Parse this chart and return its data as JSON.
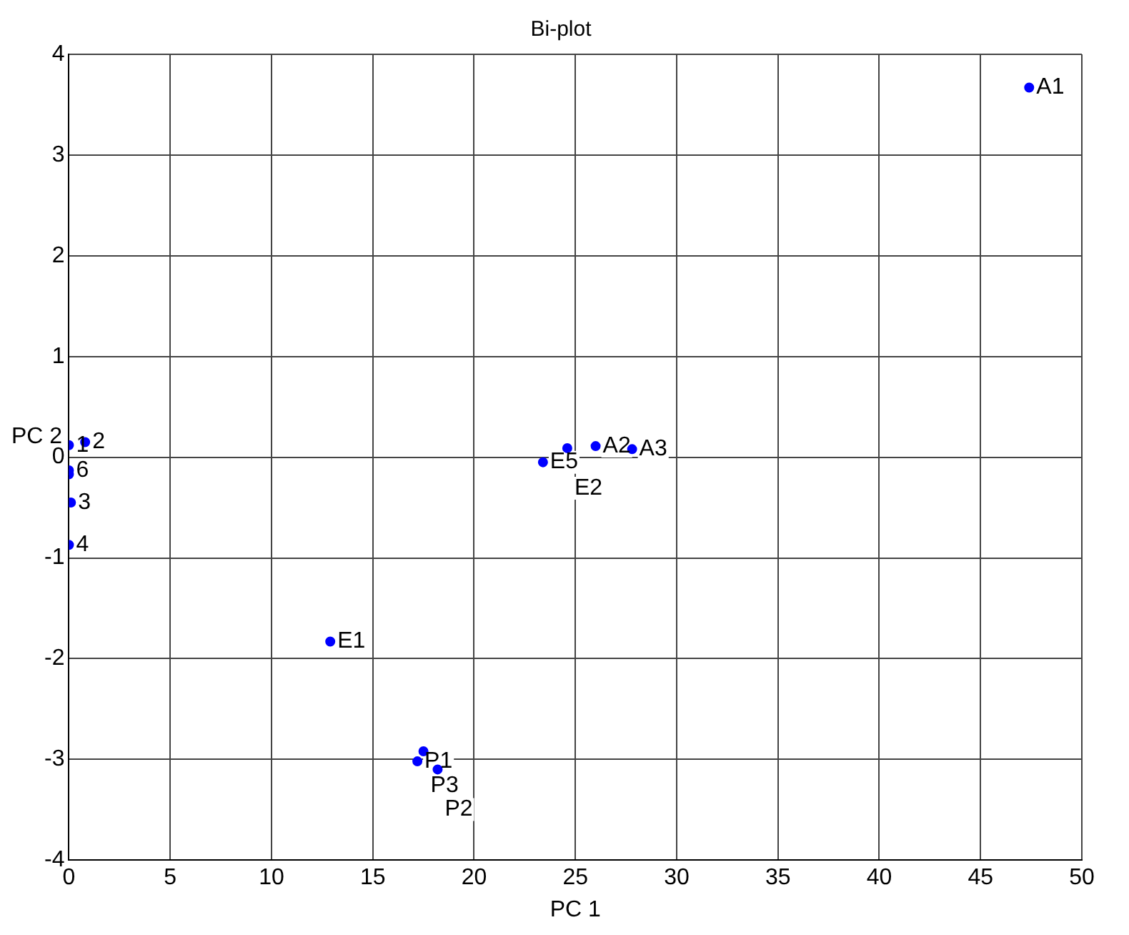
{
  "chart_data": {
    "type": "scatter",
    "title": "Bi-plot",
    "xlabel": "PC 1",
    "ylabel": "PC 2",
    "x": [
      47.4,
      12.9,
      17.2,
      17.5,
      18.2,
      23.4,
      24.6,
      26.0,
      27.8,
      0,
      0.8,
      0.1,
      0,
      0,
      0
    ],
    "series": [
      {
        "color": "#0000ff",
        "values": [
          3.67,
          -1.83,
          -3.02,
          -2.92,
          -3.1,
          -0.05,
          0.09,
          0.11,
          0.08,
          0.12,
          0.15,
          -0.45,
          -0.87,
          -0.17,
          -0.13
        ]
      }
    ],
    "annotations": [
      {
        "text": "A1",
        "x": 47.4,
        "y": 3.67
      },
      {
        "text": "E1",
        "x": 12.9,
        "y": -1.83
      },
      {
        "text": "P1",
        "x": 17.2,
        "y": -3.02
      },
      {
        "text": "P3",
        "x": 17.5,
        "y": -2.92
      },
      {
        "text": "P2",
        "x": 18.2,
        "y": -3.1
      },
      {
        "text": "E5",
        "x": 23.4,
        "y": -0.05
      },
      {
        "text": "E2",
        "x": 24.6,
        "y": 0.09
      },
      {
        "text": "A2",
        "x": 26.0,
        "y": 0.11
      },
      {
        "text": "A3",
        "x": 27.8,
        "y": 0.08
      },
      {
        "text": "1",
        "x": 0,
        "y": 0.12
      },
      {
        "text": "2",
        "x": 0.8,
        "y": 0.15
      },
      {
        "text": "3",
        "x": 0.1,
        "y": -0.45
      },
      {
        "text": "4",
        "x": 0,
        "y": -0.87
      },
      {
        "text": "6",
        "x": 0,
        "y": -0.13
      }
    ],
    "xlim": [
      0,
      50
    ],
    "xticks": [
      0,
      5,
      10,
      15,
      20,
      25,
      30,
      35,
      40,
      45,
      50
    ],
    "ylim": [
      -4,
      4
    ],
    "yticks": [
      -4,
      -3,
      -2,
      -1,
      0,
      1,
      2,
      3,
      4
    ],
    "grid": true,
    "legend": false,
    "marker": "circle"
  }
}
